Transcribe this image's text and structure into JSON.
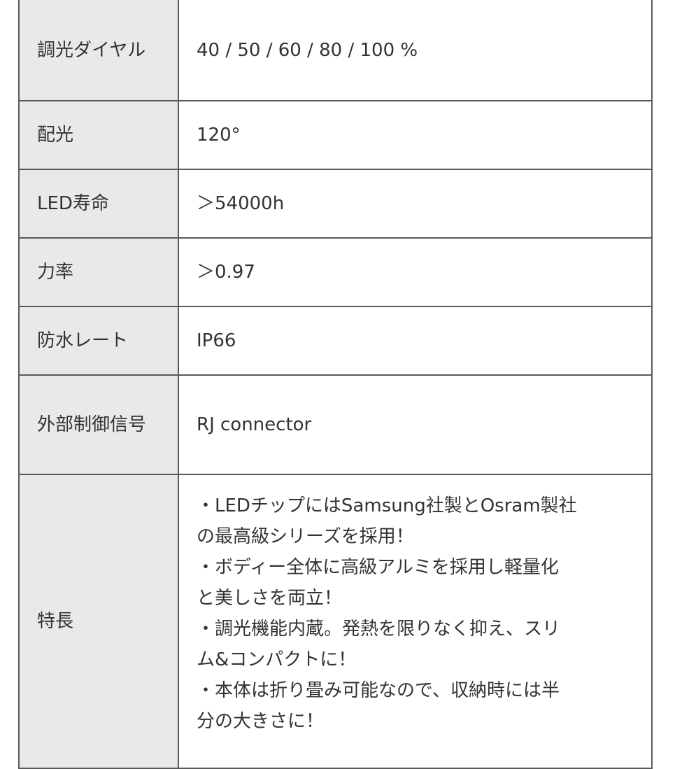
{
  "specs": [
    {
      "label": "調光ダイヤル",
      "value": "40 / 50 / 60 / 80 / 100 %"
    },
    {
      "label": "配光",
      "value": "120°"
    },
    {
      "label": "LED寿命",
      "value": "＞54000h"
    },
    {
      "label": "力率",
      "value": "＞0.97"
    },
    {
      "label": "防水レート",
      "value": "IP66"
    },
    {
      "label": "外部制御信号",
      "value": "RJ connector"
    },
    {
      "label": "特長",
      "lines": [
        "・LEDチップにはSamsung社製とOsram製社",
        "の最高級シリーズを採用！",
        "・ボディー全体に高級アルミを採用し軽量化",
        "と美しさを両立！",
        "・調光機能内蔵。発熱を限りなく抑え、スリ",
        "ム&コンパクトに！",
        "・本体は折り畳み可能なので、収納時には半",
        "分の大きさに！"
      ]
    }
  ]
}
